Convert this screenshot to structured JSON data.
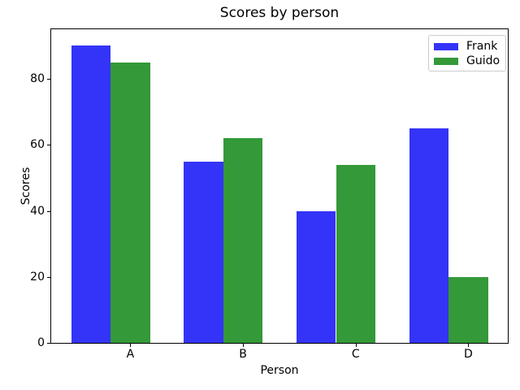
{
  "chart_data": {
    "type": "bar",
    "title": "Scores by person",
    "xlabel": "Person",
    "ylabel": "Scores",
    "categories": [
      "A",
      "B",
      "C",
      "D"
    ],
    "series": [
      {
        "name": "Frank",
        "color": "#3434f8",
        "values": [
          90,
          55,
          40,
          65
        ]
      },
      {
        "name": "Guido",
        "color": "#339939",
        "values": [
          85,
          62,
          54,
          20
        ]
      }
    ],
    "y_ticks": [
      0,
      20,
      40,
      60,
      80
    ],
    "ylim": [
      0,
      95
    ],
    "grid": false,
    "legend_position": "upper right",
    "background_color": "#ffffff",
    "axis_color": "#000000"
  }
}
